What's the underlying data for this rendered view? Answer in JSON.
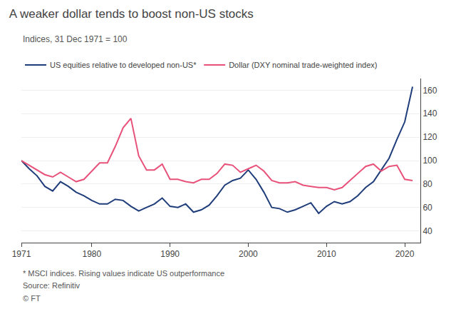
{
  "chart_data": {
    "type": "line",
    "title": "A weaker dollar tends to boost non-US stocks",
    "subtitle": "Indices, 31 Dec 1971 = 100",
    "annotations": [
      "* MSCI indices. Rising values indicate US outperformance",
      "Source: Refinitiv",
      "© FT"
    ],
    "x": [
      1971,
      1972,
      1973,
      1974,
      1975,
      1976,
      1977,
      1978,
      1979,
      1980,
      1981,
      1982,
      1983,
      1984,
      1985,
      1986,
      1987,
      1988,
      1989,
      1990,
      1991,
      1992,
      1993,
      1994,
      1995,
      1996,
      1997,
      1998,
      1999,
      2000,
      2001,
      2002,
      2003,
      2004,
      2005,
      2006,
      2007,
      2008,
      2009,
      2010,
      2011,
      2012,
      2013,
      2014,
      2015,
      2016,
      2017,
      2018,
      2019,
      2020,
      2021
    ],
    "series": [
      {
        "name": "US equities relative to developed non-US*",
        "color": "#1f3d7a",
        "values": [
          100,
          93,
          87,
          78,
          74,
          82,
          78,
          73,
          70,
          66,
          63,
          63,
          67,
          66,
          61,
          57,
          60,
          63,
          68,
          61,
          60,
          63,
          56,
          58,
          62,
          70,
          79,
          83,
          85,
          92,
          84,
          73,
          60,
          59,
          56,
          58,
          61,
          64,
          55,
          61,
          65,
          63,
          65,
          70,
          77,
          82,
          92,
          102,
          118,
          133,
          163
        ]
      },
      {
        "name": "Dollar (DXY nominal trade-weighted index)",
        "color": "#e8527a",
        "values": [
          100,
          96,
          92,
          88,
          86,
          90,
          86,
          82,
          84,
          91,
          98,
          98,
          112,
          128,
          136,
          104,
          92,
          92,
          97,
          84,
          84,
          82,
          81,
          84,
          84,
          89,
          97,
          96,
          90,
          93,
          96,
          91,
          83,
          81,
          81,
          82,
          79,
          78,
          77,
          77,
          75,
          77,
          83,
          89,
          95,
          97,
          91,
          95,
          96,
          84,
          83
        ]
      }
    ],
    "xlim": [
      1971,
      2022
    ],
    "xticks": [
      1971,
      1980,
      1990,
      2000,
      2010,
      2020
    ],
    "ylim": [
      30,
      170
    ],
    "yticks": [
      40,
      60,
      80,
      100,
      120,
      140,
      160
    ],
    "grid": "y",
    "legend": "top"
  }
}
